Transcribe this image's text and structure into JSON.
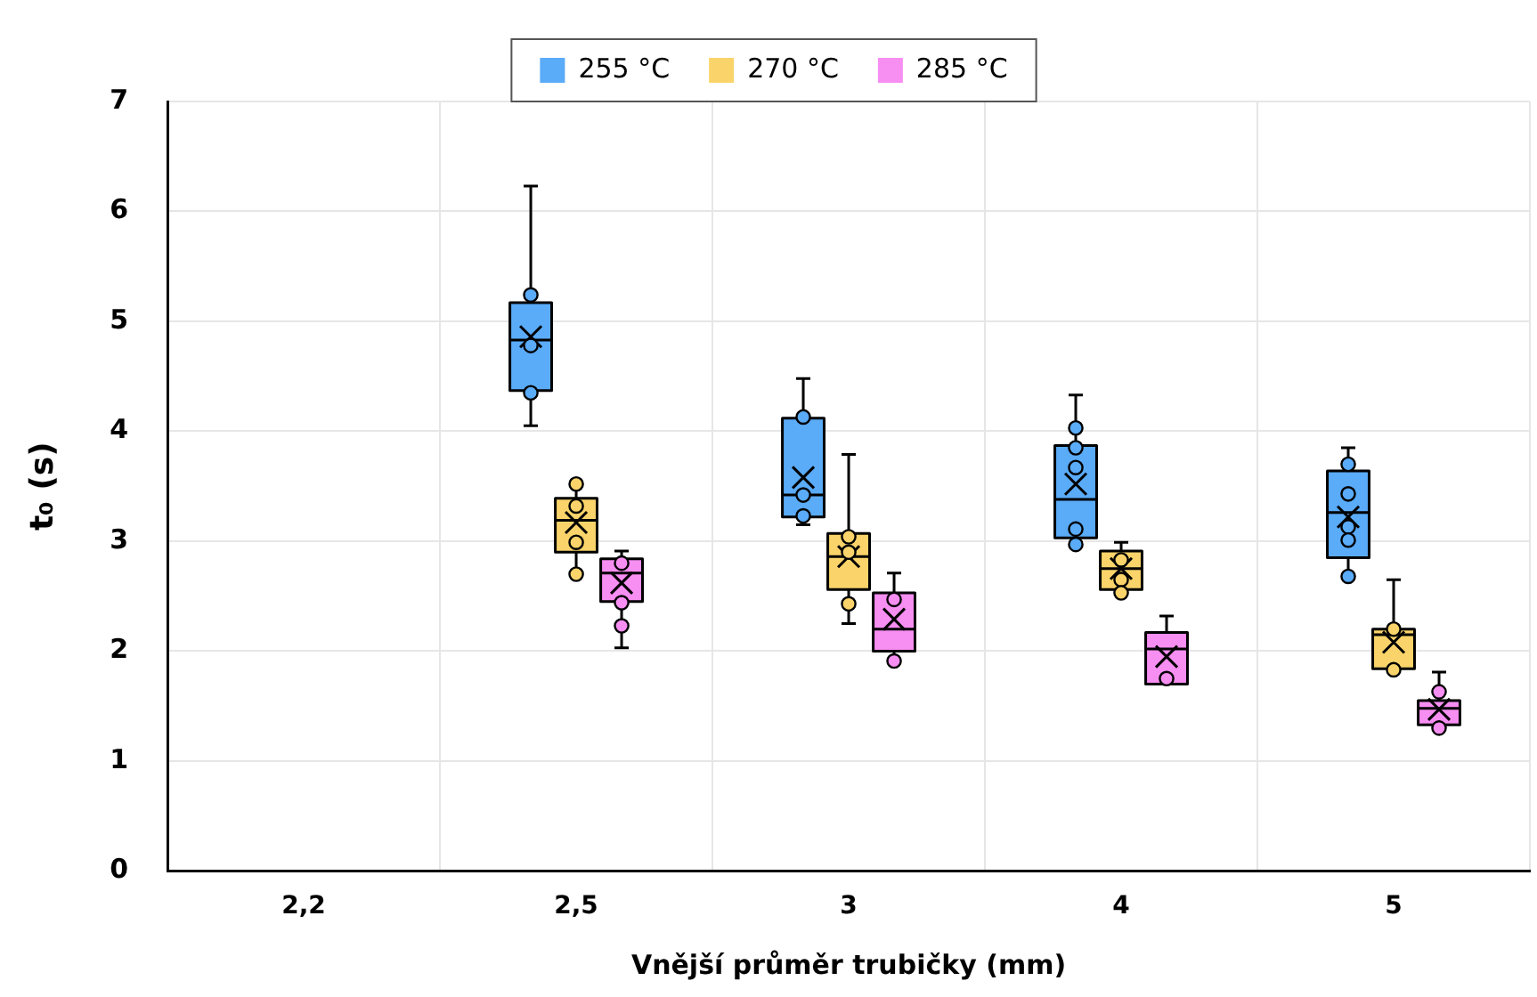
{
  "chart_data": {
    "type": "box",
    "xlabel": "Vnější průměr trubičky (mm)",
    "ylabel": "t₀ (s)",
    "categories": [
      "2,2",
      "2,5",
      "3",
      "4",
      "5"
    ],
    "ylim": [
      0,
      7
    ],
    "yticks": [
      0,
      1,
      2,
      3,
      4,
      5,
      6,
      7
    ],
    "grid": true,
    "legend": "top",
    "series": [
      {
        "name": "255 °C",
        "color": "#5aabf8",
        "boxes": [
          null,
          {
            "low": 4.05,
            "q1": 4.37,
            "median": 4.83,
            "q3": 5.17,
            "high": 6.23,
            "mean": 4.86
          },
          {
            "low": 3.15,
            "q1": 3.22,
            "median": 3.42,
            "q3": 4.12,
            "high": 4.48,
            "mean": 3.58
          },
          {
            "low": 2.97,
            "q1": 3.03,
            "median": 3.38,
            "q3": 3.87,
            "high": 4.33,
            "mean": 3.52
          },
          {
            "low": 2.68,
            "q1": 2.85,
            "median": 3.26,
            "q3": 3.64,
            "high": 3.85,
            "mean": 3.22
          }
        ]
      },
      {
        "name": "270 °C",
        "color": "#fad46a",
        "boxes": [
          null,
          {
            "low": 2.7,
            "q1": 2.9,
            "median": 3.19,
            "q3": 3.39,
            "high": 3.52,
            "mean": 3.17
          },
          {
            "low": 2.25,
            "q1": 2.56,
            "median": 2.86,
            "q3": 3.07,
            "high": 3.79,
            "mean": 2.86
          },
          {
            "low": 2.53,
            "q1": 2.56,
            "median": 2.75,
            "q3": 2.91,
            "high": 2.99,
            "mean": 2.75
          },
          {
            "low": 1.83,
            "q1": 1.84,
            "median": 2.15,
            "q3": 2.2,
            "high": 2.65,
            "mean": 2.08
          }
        ]
      },
      {
        "name": "285 °C",
        "color": "#f78ef2",
        "boxes": [
          null,
          {
            "low": 2.03,
            "q1": 2.45,
            "median": 2.71,
            "q3": 2.84,
            "high": 2.91,
            "mean": 2.62
          },
          {
            "low": 1.91,
            "q1": 2.0,
            "median": 2.2,
            "q3": 2.53,
            "high": 2.71,
            "mean": 2.29
          },
          {
            "low": 1.7,
            "q1": 1.7,
            "median": 2.02,
            "q3": 2.17,
            "high": 2.32,
            "mean": 1.95
          },
          {
            "low": 1.3,
            "q1": 1.33,
            "median": 1.48,
            "q3": 1.55,
            "high": 1.81,
            "mean": 1.47
          }
        ]
      },
      {
        "type": "scatter",
        "color": "#5aabf8",
        "marker": "circle",
        "x": [
          "2,5",
          "2,5",
          "2,5",
          "3",
          "3",
          "3",
          "4",
          "4",
          "4",
          "4",
          "4",
          "5",
          "5",
          "5",
          "5",
          "5"
        ],
        "values": [
          5.24,
          4.78,
          4.35,
          4.13,
          3.42,
          3.23,
          4.03,
          3.85,
          3.67,
          3.11,
          2.97,
          3.7,
          3.43,
          3.13,
          3.01,
          2.68
        ]
      },
      {
        "type": "scatter",
        "color": "#fad46a",
        "marker": "circle",
        "x": [
          "2,5",
          "2,5",
          "2,5",
          "2,5",
          "3",
          "3",
          "3",
          "4",
          "4",
          "4",
          "5",
          "5"
        ],
        "values": [
          3.52,
          3.32,
          2.99,
          2.7,
          3.04,
          2.9,
          2.43,
          2.83,
          2.65,
          2.53,
          2.2,
          1.83
        ]
      },
      {
        "type": "scatter",
        "color": "#f78ef2",
        "marker": "circle",
        "x": [
          "2,5",
          "2,5",
          "2,5",
          "3",
          "3",
          "4",
          "5",
          "5"
        ],
        "values": [
          2.8,
          2.44,
          2.23,
          2.47,
          1.91,
          1.75,
          1.63,
          1.3
        ]
      }
    ]
  }
}
